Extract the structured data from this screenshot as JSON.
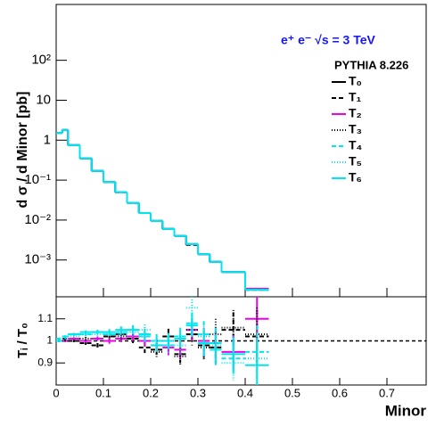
{
  "chart_data": {
    "type": "histogram",
    "annotations": [
      "e⁺ e⁻ √s = 3 TeV",
      "PYTHIA 8.226"
    ],
    "ylabel": "d σ / d Minor [pb]",
    "xlabel": "Minor",
    "ratio_ylabel": "Tᵢ / T₀",
    "log_y": true,
    "bins": [
      0,
      0.0125,
      0.025,
      0.05,
      0.075,
      0.1,
      0.125,
      0.15,
      0.175,
      0.2,
      0.225,
      0.25,
      0.275,
      0.3,
      0.325,
      0.35,
      0.4,
      0.45
    ],
    "xlim": [
      0,
      0.783
    ],
    "xticks": [
      0,
      0.1,
      0.2,
      0.3,
      0.4,
      0.5,
      0.6,
      0.7
    ],
    "ylim": [
      0.00012,
      2500
    ],
    "yticks": [
      {
        "value": 0.001,
        "label": "10⁻³"
      },
      {
        "value": 0.01,
        "label": "10⁻²"
      },
      {
        "value": 0.1,
        "label": "10⁻¹"
      },
      1,
      10,
      {
        "value": 100,
        "label": "10²"
      }
    ],
    "ratio_ylim": [
      0.8,
      1.2
    ],
    "ratio_yticks": [
      0.9,
      1,
      1.1
    ],
    "ratio_line": 1,
    "ratio_errors": [
      0.005,
      0.005,
      0.006,
      0.008,
      0.01,
      0.013,
      0.016,
      0.02,
      0.025,
      0.03,
      0.035,
      0.04,
      0.05,
      0.06,
      0.07,
      0.08,
      0.12
    ],
    "series": [
      {
        "name": "T₀",
        "color": "#000000",
        "dash": "",
        "values": [
          1.5,
          1.8,
          0.75,
          0.35,
          0.17,
          0.09,
          0.05,
          0.027,
          0.015,
          0.0095,
          0.006,
          0.004,
          0.0025,
          0.0014,
          0.0009,
          0.0005,
          0.00018
        ]
      },
      {
        "name": "T₁",
        "color": "#000000",
        "dash": "5 3",
        "values": [
          1.5,
          1.8,
          0.75,
          0.35,
          0.17,
          0.09,
          0.05,
          0.027,
          0.015,
          0.0095,
          0.006,
          0.004,
          0.0024,
          0.0014,
          0.0009,
          0.0005,
          0.00018
        ],
        "ratio": [
          1.0,
          1.01,
          1.0,
          0.99,
          0.98,
          1.02,
          1.03,
          1.01,
          0.97,
          0.96,
          1.02,
          0.94,
          1.03,
          0.98,
          0.97,
          1.05,
          1.02
        ]
      },
      {
        "name": "T₂",
        "color": "#ee00ee",
        "dash": "",
        "values": [
          1.5,
          1.8,
          0.75,
          0.35,
          0.17,
          0.09,
          0.05,
          0.027,
          0.015,
          0.0095,
          0.006,
          0.004,
          0.0025,
          0.0014,
          0.0009,
          0.0005,
          0.00019
        ],
        "ratio": [
          1.0,
          1.0,
          1.01,
          1.0,
          1.01,
          1.0,
          1.01,
          1.02,
          1.0,
          0.98,
          0.97,
          0.96,
          1.05,
          1.0,
          0.99,
          0.95,
          1.1
        ]
      },
      {
        "name": "T₃",
        "color": "#000000",
        "dash": "1 2",
        "values": [
          1.5,
          1.8,
          0.75,
          0.35,
          0.17,
          0.09,
          0.05,
          0.027,
          0.015,
          0.0095,
          0.006,
          0.004,
          0.0025,
          0.0014,
          0.0009,
          0.0005,
          0.00018
        ],
        "ratio": [
          1.0,
          1.0,
          1.0,
          1.01,
          0.98,
          1.02,
          1.02,
          1.04,
          1.03,
          0.95,
          1.0,
          0.93,
          1.05,
          0.97,
          1.03,
          1.06,
          1.03
        ]
      },
      {
        "name": "T₄",
        "color": "#00e5ee",
        "dash": "5 3",
        "values": [
          1.5,
          1.8,
          0.75,
          0.35,
          0.17,
          0.09,
          0.05,
          0.027,
          0.015,
          0.0095,
          0.006,
          0.004,
          0.0025,
          0.0014,
          0.0009,
          0.0005,
          0.00018
        ],
        "ratio": [
          1.01,
          1.02,
          1.03,
          1.03,
          1.04,
          1.03,
          1.04,
          1.05,
          1.02,
          1.0,
          0.98,
          1.02,
          1.08,
          1.03,
          0.99,
          0.92,
          0.95
        ]
      },
      {
        "name": "T₅",
        "color": "#00e5ee",
        "dash": "1 2",
        "values": [
          1.5,
          1.8,
          0.75,
          0.35,
          0.17,
          0.09,
          0.05,
          0.027,
          0.015,
          0.0095,
          0.006,
          0.004,
          0.0025,
          0.0014,
          0.0009,
          0.0005,
          0.00018
        ],
        "ratio": [
          1.0,
          1.01,
          1.02,
          1.03,
          1.03,
          1.04,
          1.03,
          1.04,
          1.05,
          1.0,
          1.0,
          0.98,
          1.15,
          1.02,
          0.98,
          0.9,
          0.92
        ]
      },
      {
        "name": "T₆",
        "color": "#00e5ee",
        "dash": "",
        "values": [
          1.5,
          1.8,
          0.75,
          0.35,
          0.17,
          0.09,
          0.05,
          0.027,
          0.015,
          0.0095,
          0.006,
          0.004,
          0.0025,
          0.0014,
          0.0009,
          0.0005,
          0.00018
        ],
        "ratio": [
          1.0,
          1.02,
          1.03,
          1.04,
          1.04,
          1.04,
          1.05,
          1.05,
          1.03,
          0.98,
          1.0,
          1.01,
          1.07,
          0.99,
          0.96,
          0.94,
          0.89
        ]
      }
    ]
  }
}
